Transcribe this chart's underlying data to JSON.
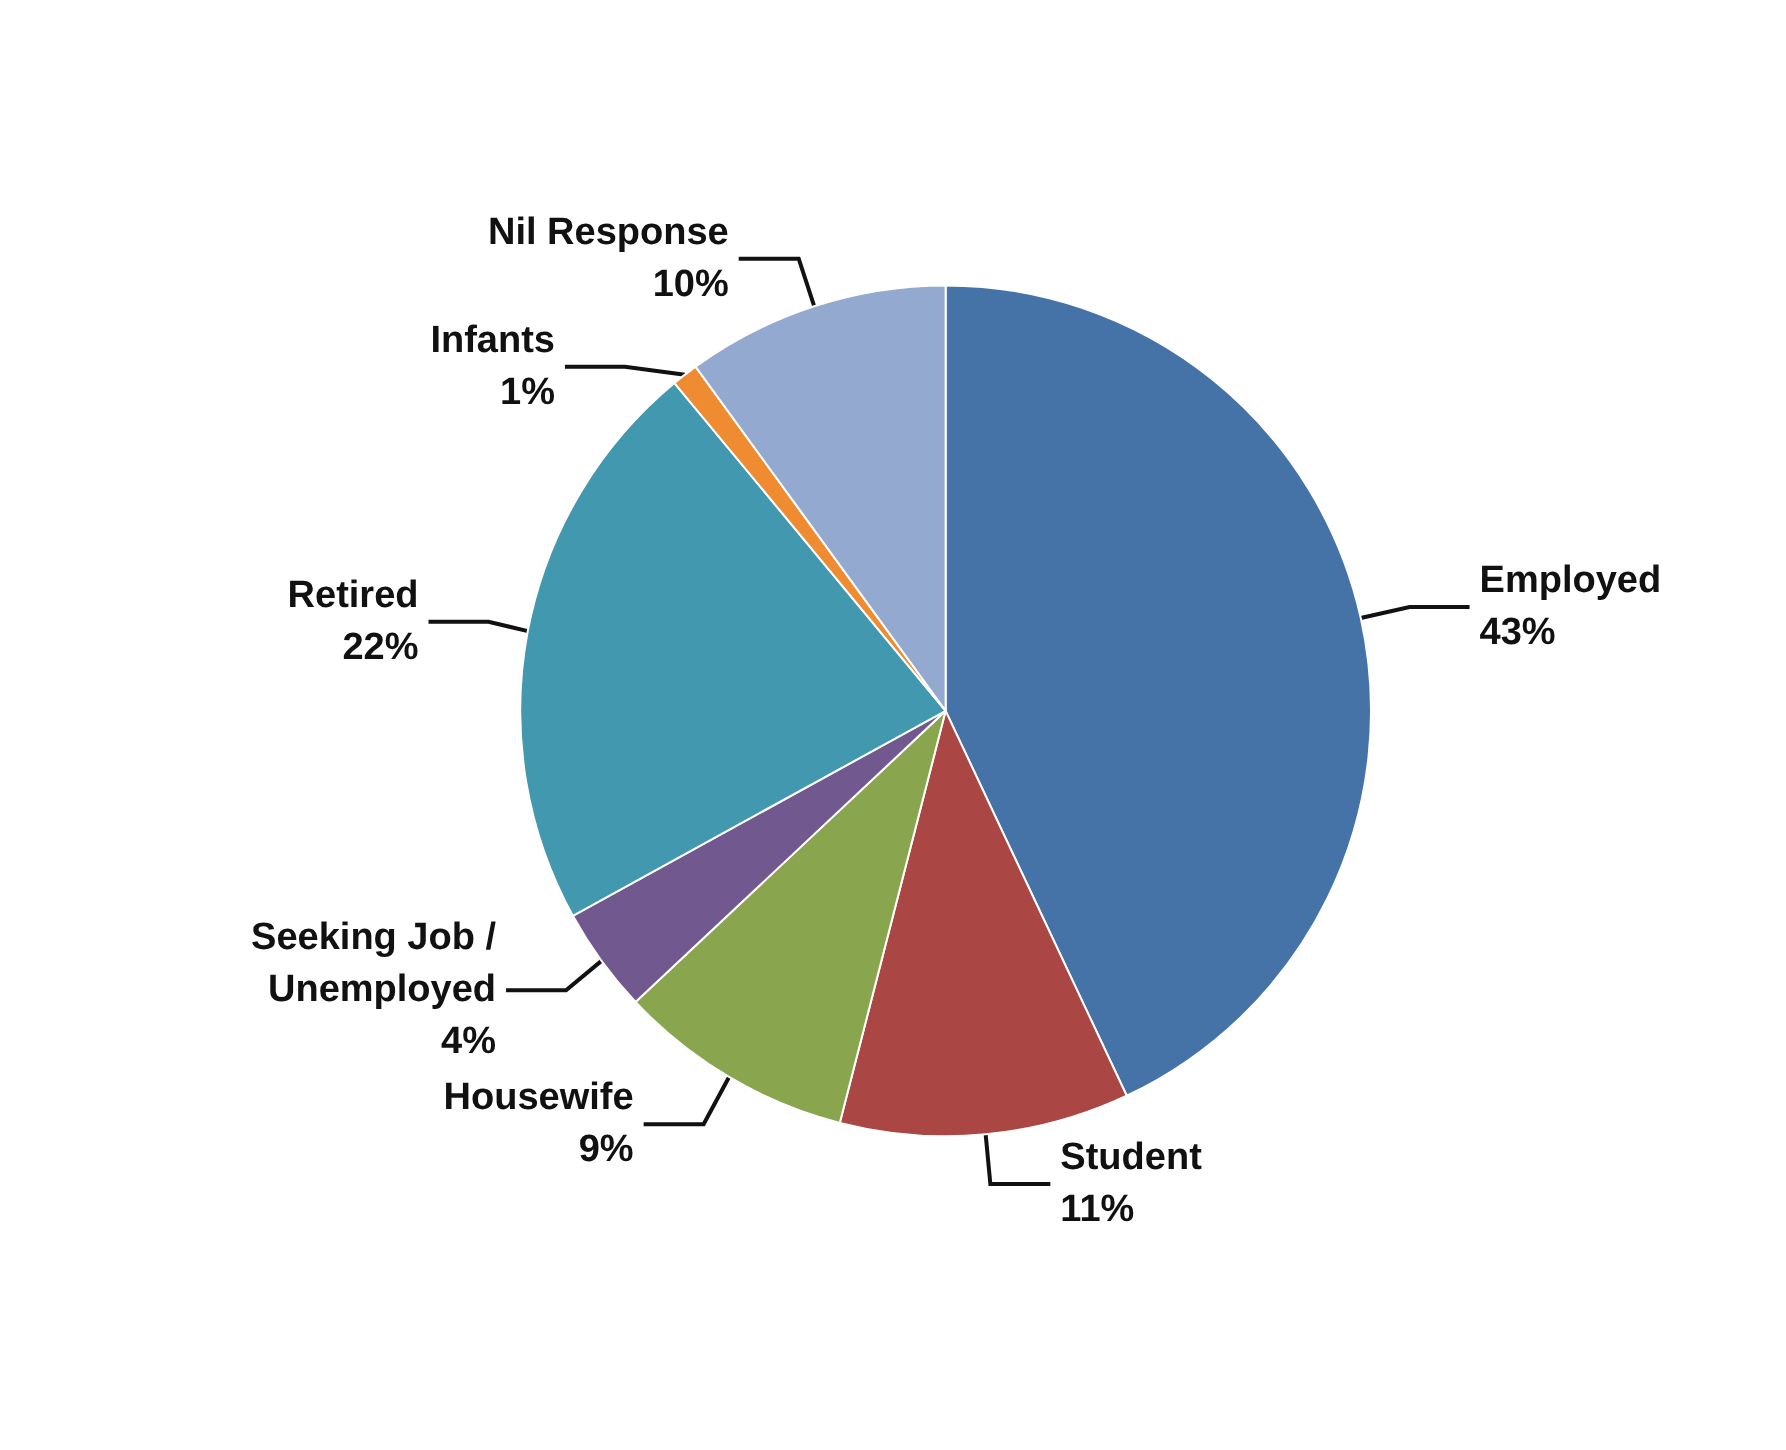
{
  "chart_data": {
    "type": "pie",
    "categories": [
      "Employed",
      "Student",
      "Housewife",
      "Seeking Job /\nUnemployed",
      "Retired",
      "Infants",
      "Nil Response"
    ],
    "values": [
      43,
      11,
      9,
      4,
      22,
      1,
      10
    ],
    "colors": [
      "#4573a7",
      "#aa4643",
      "#89a54e",
      "#71588f",
      "#4198af",
      "#ef8c31",
      "#93a9cf"
    ],
    "value_labels": [
      "43%",
      "11%",
      "9%",
      "4%",
      "22%",
      "1%",
      "10%"
    ],
    "legend": false
  }
}
